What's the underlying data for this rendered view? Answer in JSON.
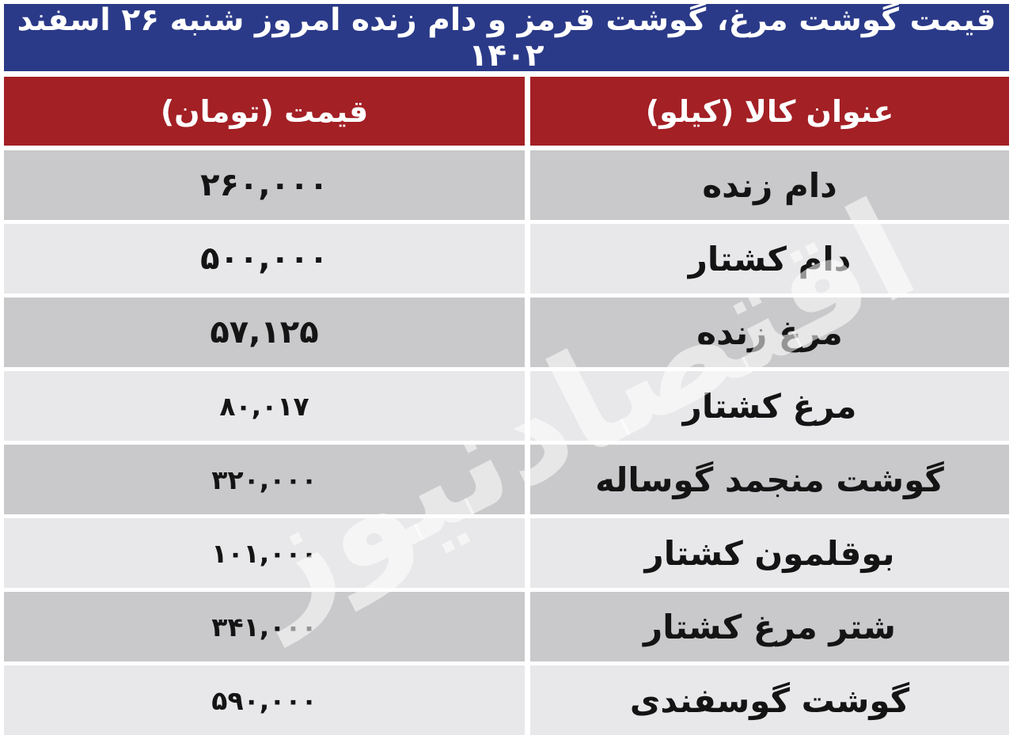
{
  "title": "قیمت گوشت مرغ، گوشت قرمز و دام زنده امروز شنبه ۲۶ اسفند ۱۴۰۲",
  "watermark": {
    "text": "اقتصادنیوز"
  },
  "table": {
    "headers": {
      "item": "عنوان کالا (کیلو)",
      "price": "قیمت (تومان)"
    },
    "rows": [
      {
        "name": "دام زنده",
        "price": "۲۶۰,۰۰۰"
      },
      {
        "name": "دام کشتار",
        "price": "۵۰۰,۰۰۰"
      },
      {
        "name": "مرغ زنده",
        "price": "۵۷,۱۲۵"
      },
      {
        "name": "مرغ کشتار",
        "price": "۸۰,۰۱۷"
      },
      {
        "name": "گوشت منجمد گوساله",
        "price": "۳۲۰,۰۰۰"
      },
      {
        "name": "بوقلمون کشتار",
        "price": "۱۰۱,۰۰۰"
      },
      {
        "name": "شتر مرغ کشتار",
        "price": "۳۴۱,۰۰۰"
      },
      {
        "name": "گوشت گوسفندی",
        "price": "۵۹۰,۰۰۰"
      }
    ]
  },
  "chart_data": {
    "type": "table",
    "title": "قیمت گوشت مرغ، گوشت قرمز و دام زنده امروز شنبه ۲۶ اسفند ۱۴۰۲",
    "columns": [
      "عنوان کالا (کیلو)",
      "قیمت (تومان)"
    ],
    "rows": [
      [
        "دام زنده",
        "۲۶۰,۰۰۰"
      ],
      [
        "دام کشتار",
        "۵۰۰,۰۰۰"
      ],
      [
        "مرغ زنده",
        "۵۷,۱۲۵"
      ],
      [
        "مرغ کشتار",
        "۸۰,۰۱۷"
      ],
      [
        "گوشت منجمد گوساله",
        "۳۲۰,۰۰۰"
      ],
      [
        "بوقلمون کشتار",
        "۱۰۱,۰۰۰"
      ],
      [
        "شتر مرغ کشتار",
        "۳۴۱,۰۰۰"
      ],
      [
        "گوشت گوسفندی",
        "۵۹۰,۰۰۰"
      ]
    ],
    "values_numeric": [
      260000,
      500000,
      57125,
      80017,
      320000,
      101000,
      341000,
      590000
    ],
    "unit": "تومان"
  },
  "colors": {
    "title_bg": "#2b3a88",
    "header_bg": "#a32025",
    "row_dark": "#c9c9cb",
    "row_light": "#e8e8ea",
    "header_text": "#ffffff",
    "body_text": "#141414",
    "watermark": "rgba(255,255,255,0.55)"
  }
}
